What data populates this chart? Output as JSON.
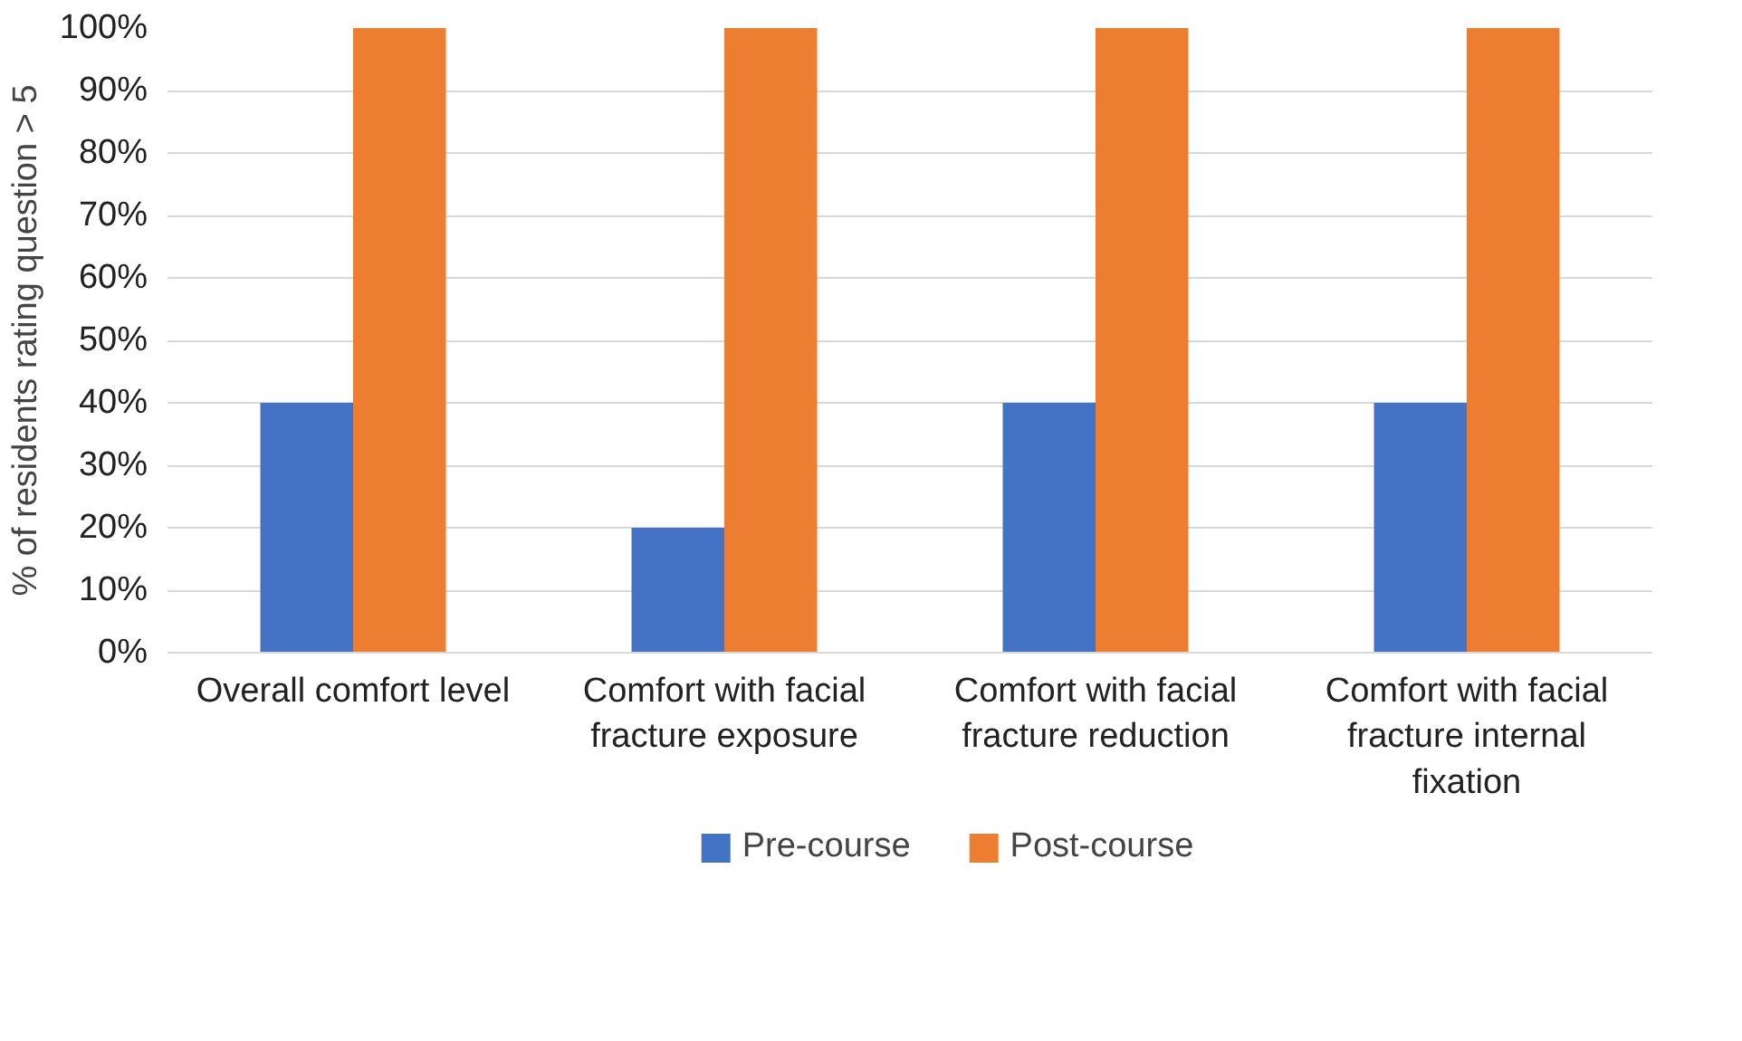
{
  "chart_data": {
    "type": "bar",
    "categories": [
      "Overall comfort level",
      "Comfort with facial fracture exposure",
      "Comfort with facial fracture reduction",
      "Comfort with facial fracture internal fixation"
    ],
    "ylabel": "% of residents rating question > 5",
    "series": [
      {
        "name": "Pre-course",
        "color": "#4472c4",
        "values": [
          40,
          20,
          40,
          40
        ]
      },
      {
        "name": "Post-course",
        "color": "#ed7d31",
        "values": [
          100,
          100,
          100,
          100
        ]
      }
    ],
    "ylim": [
      0,
      100
    ],
    "yticks": [
      {
        "value": 0,
        "label": "0%"
      },
      {
        "value": 10,
        "label": "10%"
      },
      {
        "value": 20,
        "label": "20%"
      },
      {
        "value": 30,
        "label": "30%"
      },
      {
        "value": 40,
        "label": "40%"
      },
      {
        "value": 50,
        "label": "50%"
      },
      {
        "value": 60,
        "label": "60%"
      },
      {
        "value": 70,
        "label": "70%"
      },
      {
        "value": 80,
        "label": "80%"
      },
      {
        "value": 90,
        "label": "90%"
      },
      {
        "value": 100,
        "label": "100%"
      }
    ],
    "grid": "y",
    "legend": "bottom"
  }
}
